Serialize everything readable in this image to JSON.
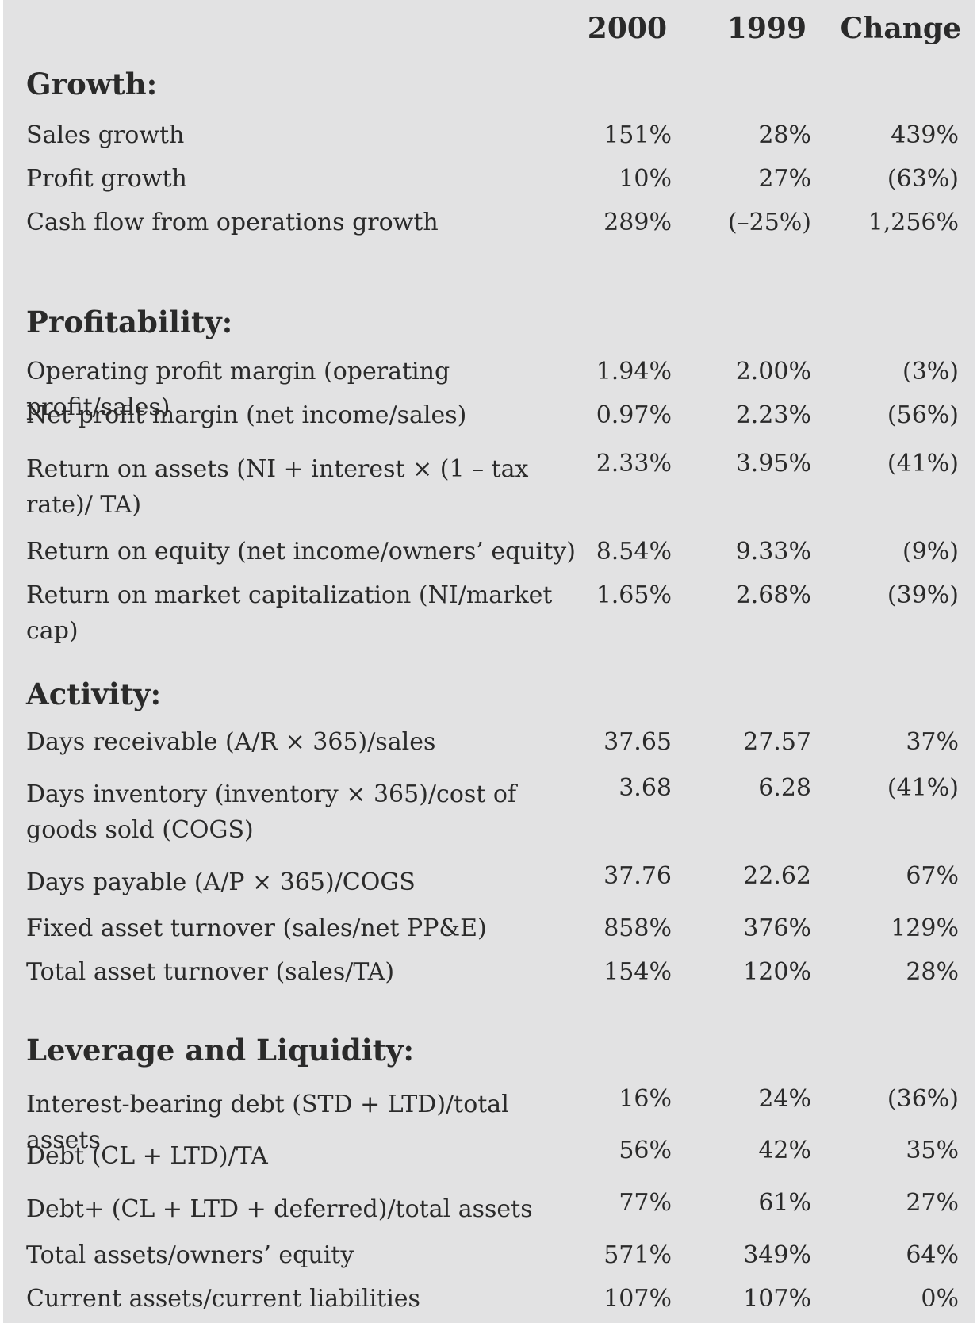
{
  "columns": [
    "2000",
    "1999",
    "Change"
  ],
  "sections": [
    {
      "title": "Growth:",
      "rows": [
        {
          "label": "Sales growth",
          "y2000": "151%",
          "y1999": "28%",
          "change": "439%"
        },
        {
          "label": "Profit growth",
          "y2000": "10%",
          "y1999": "27%",
          "change": "(63%)"
        },
        {
          "label": "Cash flow from operations growth",
          "y2000": "289%",
          "y1999": "(–25%)",
          "change": "1,256%"
        }
      ]
    },
    {
      "title": "Profitability:",
      "rows": [
        {
          "label": "Operating profit margin (operating profit/sales)",
          "y2000": "1.94%",
          "y1999": "2.00%",
          "change": "(3%)"
        },
        {
          "label": "Net profit margin (net income/sales)",
          "y2000": "0.97%",
          "y1999": "2.23%",
          "change": "(56%)"
        },
        {
          "label": "Return on assets (NI + interest × (1 – tax rate)/ TA)",
          "y2000": "2.33%",
          "y1999": "3.95%",
          "change": "(41%)"
        },
        {
          "label": "Return on equity (net income/owners’ equity)",
          "y2000": "8.54%",
          "y1999": "9.33%",
          "change": "(9%)"
        },
        {
          "label": "Return on market capitalization (NI/market cap)",
          "y2000": "1.65%",
          "y1999": "2.68%",
          "change": "(39%)"
        }
      ]
    },
    {
      "title": "Activity:",
      "rows": [
        {
          "label": "Days receivable (A/R × 365)/sales",
          "y2000": "37.65",
          "y1999": "27.57",
          "change": "37%"
        },
        {
          "label": "Days inventory (inventory × 365)/cost of goods sold (COGS)",
          "y2000": "3.68",
          "y1999": "6.28",
          "change": "(41%)"
        },
        {
          "label": "Days payable (A/P × 365)/COGS",
          "y2000": "37.76",
          "y1999": "22.62",
          "change": "67%"
        },
        {
          "label": "Fixed asset turnover (sales/net PP&E)",
          "y2000": "858%",
          "y1999": "376%",
          "change": "129%"
        },
        {
          "label": "Total asset turnover (sales/TA)",
          "y2000": "154%",
          "y1999": "120%",
          "change": "28%"
        }
      ]
    },
    {
      "title": "Leverage and Liquidity:",
      "rows": [
        {
          "label": "Interest-bearing debt (STD + LTD)/total assets",
          "y2000": "16%",
          "y1999": "24%",
          "change": "(36%)"
        },
        {
          "label": "Debt (CL + LTD)/TA",
          "y2000": "56%",
          "y1999": "42%",
          "change": "35%"
        },
        {
          "label": "Debt+ (CL + LTD + deferred)/total assets",
          "y2000": "77%",
          "y1999": "61%",
          "change": "27%"
        },
        {
          "label": "Total assets/owners’ equity",
          "y2000": "571%",
          "y1999": "349%",
          "change": "64%"
        },
        {
          "label": "Current assets/current liabilities",
          "y2000": "107%",
          "y1999": "107%",
          "change": "0%"
        }
      ]
    }
  ]
}
